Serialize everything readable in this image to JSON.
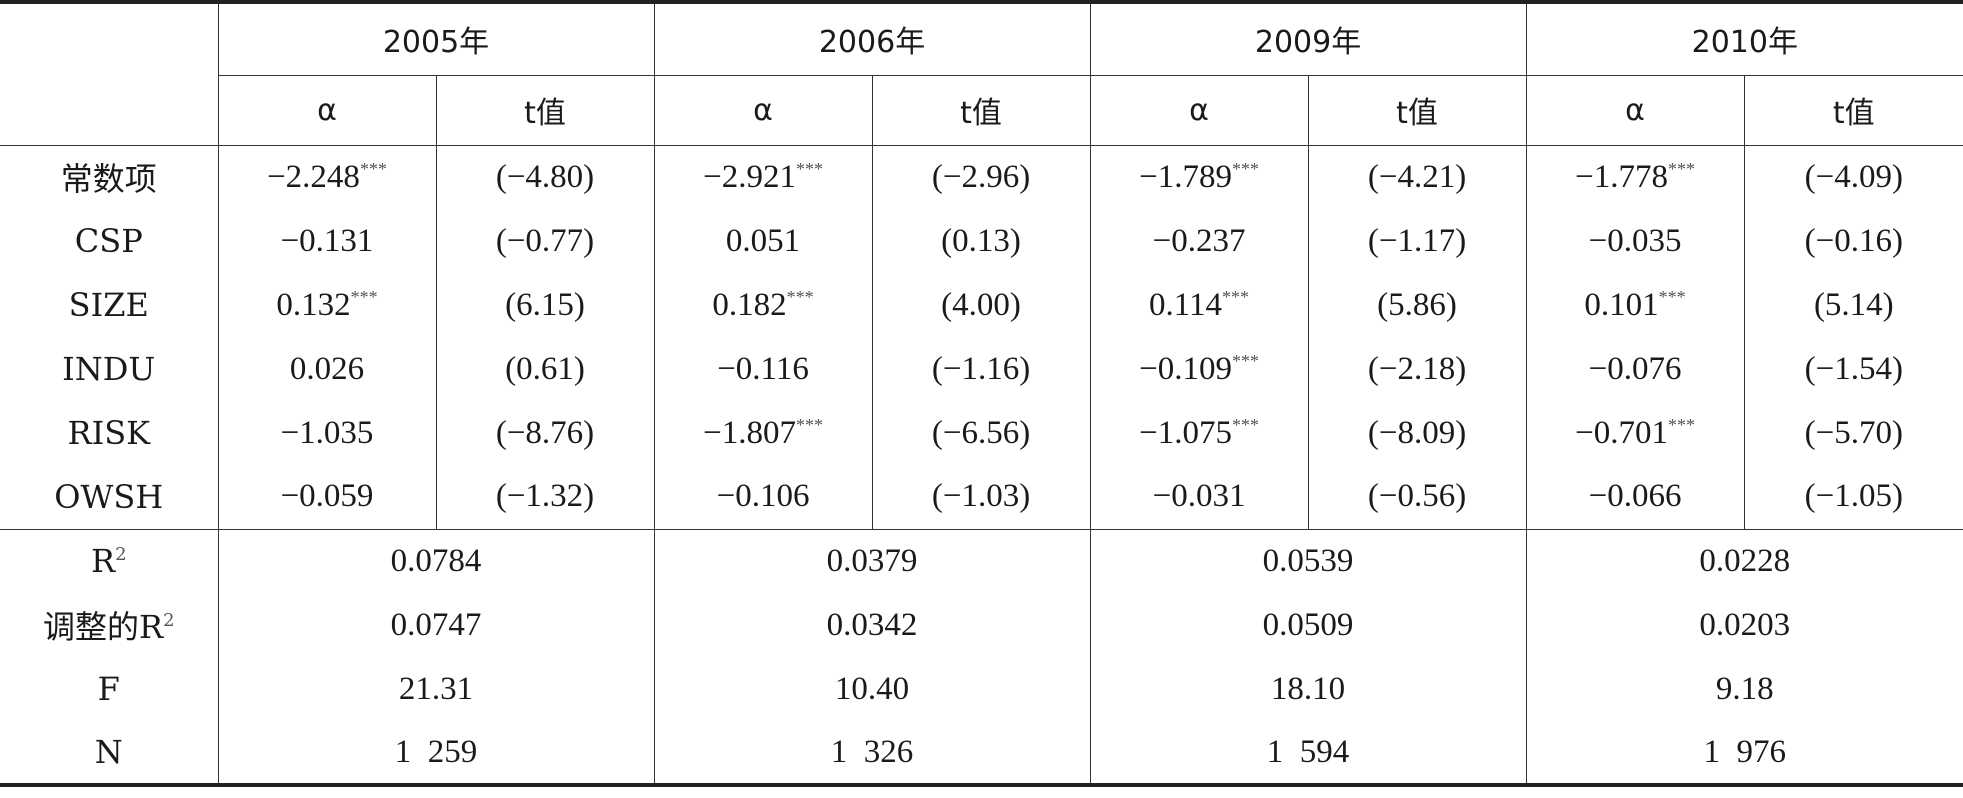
{
  "header": {
    "columns": [
      {
        "year": "2005年",
        "sub": [
          "α",
          "t值"
        ]
      },
      {
        "year": "2006年",
        "sub": [
          "α",
          "t值"
        ]
      },
      {
        "year": "2009年",
        "sub": [
          "α",
          "t值"
        ]
      },
      {
        "year": "2010年",
        "sub": [
          "α",
          "t值"
        ]
      }
    ]
  },
  "coefficient_rows": [
    {
      "label": "常数项",
      "cells": [
        {
          "coef": "−2.248",
          "sig": "***",
          "t": "(−4.80)"
        },
        {
          "coef": "−2.921",
          "sig": "***",
          "t": "(−2.96)"
        },
        {
          "coef": "−1.789",
          "sig": "***",
          "t": "(−4.21)"
        },
        {
          "coef": "−1.778",
          "sig": "***",
          "t": "(−4.09)"
        }
      ]
    },
    {
      "label": "CSP",
      "cells": [
        {
          "coef": "−0.131",
          "t": "(−0.77)"
        },
        {
          "coef": "0.051",
          "t": "(0.13)"
        },
        {
          "coef": "−0.237",
          "t": "(−1.17)"
        },
        {
          "coef": "−0.035",
          "t": "(−0.16)"
        }
      ]
    },
    {
      "label": "SIZE",
      "cells": [
        {
          "coef": "0.132",
          "sig": "***",
          "t": "(6.15)"
        },
        {
          "coef": "0.182",
          "sig": "***",
          "t": "(4.00)"
        },
        {
          "coef": "0.114",
          "sig": "***",
          "t": "(5.86)"
        },
        {
          "coef": "0.101",
          "sig": "***",
          "t": "(5.14)"
        }
      ]
    },
    {
      "label": "INDU",
      "cells": [
        {
          "coef": "0.026",
          "t": "(0.61)"
        },
        {
          "coef": "−0.116",
          "t": "(−1.16)"
        },
        {
          "coef": "−0.109",
          "sig": "***",
          "t": "(−2.18)"
        },
        {
          "coef": "−0.076",
          "t": "(−1.54)"
        }
      ]
    },
    {
      "label": "RISK",
      "cells": [
        {
          "coef": "−1.035",
          "t": "(−8.76)"
        },
        {
          "coef": "−1.807",
          "sig": "***",
          "t": "(−6.56)"
        },
        {
          "coef": "−1.075",
          "sig": "***",
          "t": "(−8.09)"
        },
        {
          "coef": "−0.701",
          "sig": "***",
          "t": "(−5.70)"
        }
      ]
    },
    {
      "label": "OWSH",
      "cells": [
        {
          "coef": "−0.059",
          "t": "(−1.32)"
        },
        {
          "coef": "−0.106",
          "t": "(−1.03)"
        },
        {
          "coef": "−0.031",
          "t": "(−0.56)"
        },
        {
          "coef": "−0.066",
          "t": "(−1.05)"
        }
      ]
    }
  ],
  "stat_rows": [
    {
      "label": {
        "text": "R",
        "sup": "2"
      },
      "values": [
        "0.0784",
        "0.0379",
        "0.0539",
        "0.0228"
      ]
    },
    {
      "label": {
        "text": "调整的R",
        "sup": "2"
      },
      "values": [
        "0.0747",
        "0.0342",
        "0.0509",
        "0.0203"
      ]
    },
    {
      "label": {
        "text": "F"
      },
      "values": [
        "21.31",
        "10.40",
        "18.10",
        "9.18"
      ]
    },
    {
      "label": {
        "text": "N"
      },
      "values": [
        "1  259",
        "1  326",
        "1  594",
        "1  976"
      ]
    }
  ]
}
